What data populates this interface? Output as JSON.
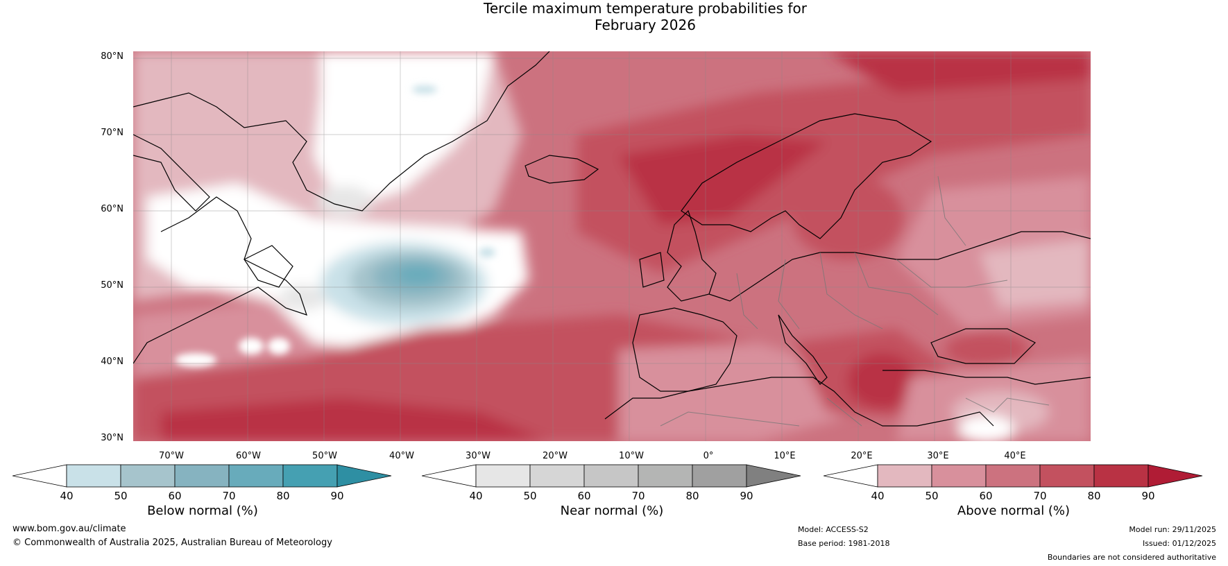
{
  "title": {
    "line1": "Tercile maximum temperature probabilities for",
    "line2": "February 2026"
  },
  "latitudes": [
    "80°N",
    "70°N",
    "60°N",
    "50°N",
    "40°N",
    "30°N"
  ],
  "longitudes": [
    "70°W",
    "60°W",
    "50°W",
    "40°W",
    "30°W",
    "20°W",
    "10°W",
    "0°",
    "10°E",
    "20°E",
    "30°E",
    "40°E"
  ],
  "colorbars": [
    {
      "label": "Below normal (%)",
      "ticks": [
        "40",
        "50",
        "60",
        "70",
        "80",
        "90"
      ],
      "colors": [
        "#ffffff",
        "#c9e1e8",
        "#a6c4cc",
        "#86b3c0",
        "#68abbb",
        "#45a0b2",
        "#2e8fa3"
      ]
    },
    {
      "label": "Near normal (%)",
      "ticks": [
        "40",
        "50",
        "60",
        "70",
        "80",
        "90"
      ],
      "colors": [
        "#ffffff",
        "#e6e6e6",
        "#d6d6d6",
        "#c6c6c6",
        "#b4b5b4",
        "#a0a0a0",
        "#808080"
      ]
    },
    {
      "label": "Above normal (%)",
      "ticks": [
        "40",
        "50",
        "60",
        "70",
        "80",
        "90"
      ],
      "colors": [
        "#ffffff",
        "#e3b8bf",
        "#d8909c",
        "#cc727f",
        "#c3515f",
        "#b93244",
        "#b01c35"
      ]
    }
  ],
  "footer": {
    "url": "www.bom.gov.au/climate",
    "copyright": "© Commonwealth of Australia 2025, Australian Bureau of Meteorology",
    "model": "Model: ACCESS-S2",
    "base_period": "Base period: 1981-2018",
    "model_run": "Model run: 29/11/2025",
    "issued": "Issued: 01/12/2025",
    "disclaimer": "Boundaries are not considered authoritative"
  }
}
